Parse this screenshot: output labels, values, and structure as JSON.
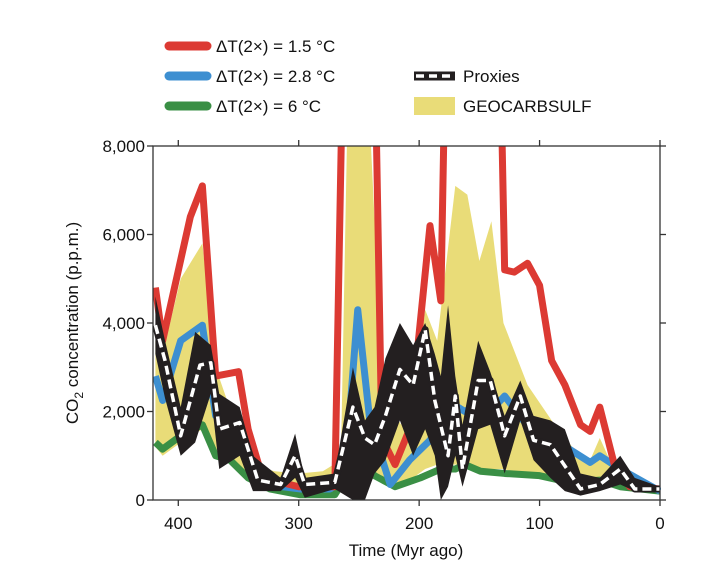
{
  "chart_data": {
    "type": "line",
    "xlabel": "Time (Myr ago)",
    "ylabel": "CO2 concentration (p.p.m.)",
    "ylabel_main": "CO",
    "ylabel_sub": "2",
    "ylabel_rest": " concentration (p.p.m.)",
    "xlim": [
      421,
      0
    ],
    "ylim": [
      0,
      8000
    ],
    "xticks": [
      400,
      300,
      200,
      100,
      0
    ],
    "yticks": [
      0,
      2000,
      4000,
      6000,
      8000
    ],
    "ytick_labels": [
      "0",
      "2,000",
      "4,000",
      "6,000",
      "8,000"
    ],
    "legend": [
      {
        "key": "red",
        "label": "ΔT(2×) = 1.5 °C"
      },
      {
        "key": "blue",
        "label": "ΔT(2×) = 2.8 °C"
      },
      {
        "key": "green",
        "label": "ΔT(2×) = 6 °C"
      },
      {
        "key": "proxies",
        "label": "Proxies"
      },
      {
        "key": "geocarb",
        "label": "GEOCARBSULF"
      }
    ],
    "colors": {
      "red": "#dc3a33",
      "blue": "#3d8fd1",
      "green": "#3a8f45",
      "proxies": "#231f20",
      "geocarb": "#e9dc78"
    },
    "series": [
      {
        "name": "ΔT(2×) = 1.5 °C",
        "key": "red",
        "points": [
          [
            419,
            4800
          ],
          [
            413,
            3600
          ],
          [
            390,
            6400
          ],
          [
            380,
            7100
          ],
          [
            369,
            2800
          ],
          [
            350,
            2900
          ],
          [
            342,
            1600
          ],
          [
            330,
            500
          ],
          [
            300,
            300
          ],
          [
            275,
            300
          ],
          [
            270,
            300
          ],
          [
            262,
            12000
          ],
          [
            238,
            12000
          ],
          [
            231,
            1400
          ],
          [
            220,
            800
          ],
          [
            208,
            1600
          ],
          [
            191,
            6200
          ],
          [
            182,
            4500
          ],
          [
            177,
            12000
          ],
          [
            134,
            12000
          ],
          [
            129,
            5200
          ],
          [
            121,
            5150
          ],
          [
            110,
            5350
          ],
          [
            100,
            4850
          ],
          [
            90,
            3150
          ],
          [
            79,
            2600
          ],
          [
            66,
            1700
          ],
          [
            58,
            1550
          ],
          [
            50,
            2100
          ],
          [
            37,
            700
          ],
          [
            25,
            300
          ],
          [
            0,
            250
          ]
        ]
      },
      {
        "name": "ΔT(2×) = 2.8 °C",
        "key": "blue",
        "points": [
          [
            419,
            2800
          ],
          [
            413,
            2250
          ],
          [
            398,
            3600
          ],
          [
            380,
            3950
          ],
          [
            369,
            1900
          ],
          [
            353,
            1600
          ],
          [
            342,
            1000
          ],
          [
            328,
            350
          ],
          [
            299,
            250
          ],
          [
            274,
            250
          ],
          [
            262,
            450
          ],
          [
            251,
            4300
          ],
          [
            241,
            1800
          ],
          [
            224,
            350
          ],
          [
            208,
            900
          ],
          [
            191,
            1350
          ],
          [
            174,
            2200
          ],
          [
            162,
            2000
          ],
          [
            149,
            2200
          ],
          [
            141,
            2000
          ],
          [
            129,
            2350
          ],
          [
            108,
            1600
          ],
          [
            87,
            1350
          ],
          [
            58,
            850
          ],
          [
            50,
            1000
          ],
          [
            33,
            700
          ],
          [
            0,
            200
          ]
        ]
      },
      {
        "name": "ΔT(2×) = 6 °C",
        "key": "green",
        "points": [
          [
            419,
            1300
          ],
          [
            413,
            1150
          ],
          [
            398,
            1450
          ],
          [
            380,
            1700
          ],
          [
            369,
            1000
          ],
          [
            357,
            900
          ],
          [
            342,
            500
          ],
          [
            324,
            250
          ],
          [
            299,
            120
          ],
          [
            270,
            120
          ],
          [
            251,
            950
          ],
          [
            237,
            550
          ],
          [
            220,
            300
          ],
          [
            199,
            500
          ],
          [
            182,
            700
          ],
          [
            170,
            700
          ],
          [
            162,
            800
          ],
          [
            149,
            650
          ],
          [
            129,
            600
          ],
          [
            100,
            550
          ],
          [
            75,
            400
          ],
          [
            50,
            450
          ],
          [
            33,
            300
          ],
          [
            0,
            200
          ]
        ]
      },
      {
        "name": "Proxies",
        "key": "proxies",
        "points": [
          [
            419,
            3950
          ],
          [
            411,
            3150
          ],
          [
            398,
            1450
          ],
          [
            382,
            3050
          ],
          [
            373,
            3100
          ],
          [
            366,
            1600
          ],
          [
            349,
            1750
          ],
          [
            334,
            450
          ],
          [
            315,
            350
          ],
          [
            303,
            1000
          ],
          [
            295,
            350
          ],
          [
            270,
            400
          ],
          [
            255,
            2100
          ],
          [
            245,
            1400
          ],
          [
            237,
            1250
          ],
          [
            228,
            1900
          ],
          [
            216,
            2950
          ],
          [
            205,
            2600
          ],
          [
            195,
            3850
          ],
          [
            187,
            2250
          ],
          [
            176,
            1000
          ],
          [
            170,
            2350
          ],
          [
            164,
            700
          ],
          [
            151,
            2700
          ],
          [
            141,
            2700
          ],
          [
            129,
            1450
          ],
          [
            116,
            2350
          ],
          [
            105,
            1350
          ],
          [
            91,
            1250
          ],
          [
            66,
            250
          ],
          [
            50,
            350
          ],
          [
            33,
            700
          ],
          [
            21,
            250
          ],
          [
            0,
            250
          ]
        ],
        "band": [
          [
            419,
            4600,
            3300
          ],
          [
            411,
            3600,
            2300
          ],
          [
            398,
            2100,
            1000
          ],
          [
            386,
            3800,
            1300
          ],
          [
            373,
            3500,
            2400
          ],
          [
            366,
            2400,
            700
          ],
          [
            349,
            2100,
            1000
          ],
          [
            338,
            1000,
            200
          ],
          [
            315,
            500,
            200
          ],
          [
            303,
            1500,
            500
          ],
          [
            295,
            500,
            50
          ],
          [
            270,
            600,
            250
          ],
          [
            255,
            3000,
            0
          ],
          [
            245,
            1800,
            0
          ],
          [
            237,
            2100,
            600
          ],
          [
            228,
            3200,
            900
          ],
          [
            216,
            4000,
            1800
          ],
          [
            205,
            3500,
            1000
          ],
          [
            195,
            4000,
            1600
          ],
          [
            187,
            3300,
            1000
          ],
          [
            182,
            2800,
            0
          ],
          [
            176,
            4400,
            300
          ],
          [
            170,
            2800,
            1000
          ],
          [
            164,
            1700,
            300
          ],
          [
            151,
            3600,
            1600
          ],
          [
            141,
            2900,
            1700
          ],
          [
            129,
            1900,
            600
          ],
          [
            116,
            2700,
            1800
          ],
          [
            105,
            1900,
            900
          ],
          [
            91,
            1800,
            500
          ],
          [
            79,
            1600,
            200
          ],
          [
            66,
            600,
            100
          ],
          [
            50,
            500,
            200
          ],
          [
            33,
            1000,
            350
          ],
          [
            21,
            500,
            200
          ],
          [
            0,
            300,
            200
          ]
        ]
      },
      {
        "name": "GEOCARBSULF",
        "key": "geocarb",
        "band": [
          [
            419,
            3600,
            1200
          ],
          [
            413,
            3300,
            1000
          ],
          [
            398,
            5000,
            1300
          ],
          [
            380,
            5800,
            1600
          ],
          [
            369,
            3000,
            1100
          ],
          [
            355,
            1900,
            800
          ],
          [
            340,
            800,
            500
          ],
          [
            320,
            650,
            300
          ],
          [
            300,
            600,
            250
          ],
          [
            280,
            650,
            250
          ],
          [
            265,
            900,
            300
          ],
          [
            260,
            8000,
            500
          ],
          [
            250,
            8000,
            1800
          ],
          [
            240,
            8000,
            800
          ],
          [
            230,
            2400,
            400
          ],
          [
            215,
            1700,
            400
          ],
          [
            205,
            2100,
            500
          ],
          [
            195,
            4300,
            700
          ],
          [
            185,
            3600,
            800
          ],
          [
            170,
            7100,
            800
          ],
          [
            160,
            6900,
            800
          ],
          [
            150,
            5400,
            700
          ],
          [
            140,
            6300,
            700
          ],
          [
            130,
            4000,
            700
          ],
          [
            110,
            2600,
            550
          ],
          [
            90,
            1800,
            450
          ],
          [
            70,
            1100,
            350
          ],
          [
            58,
            900,
            300
          ],
          [
            50,
            1400,
            350
          ],
          [
            40,
            800,
            300
          ],
          [
            25,
            400,
            250
          ],
          [
            0,
            300,
            150
          ]
        ]
      }
    ]
  }
}
